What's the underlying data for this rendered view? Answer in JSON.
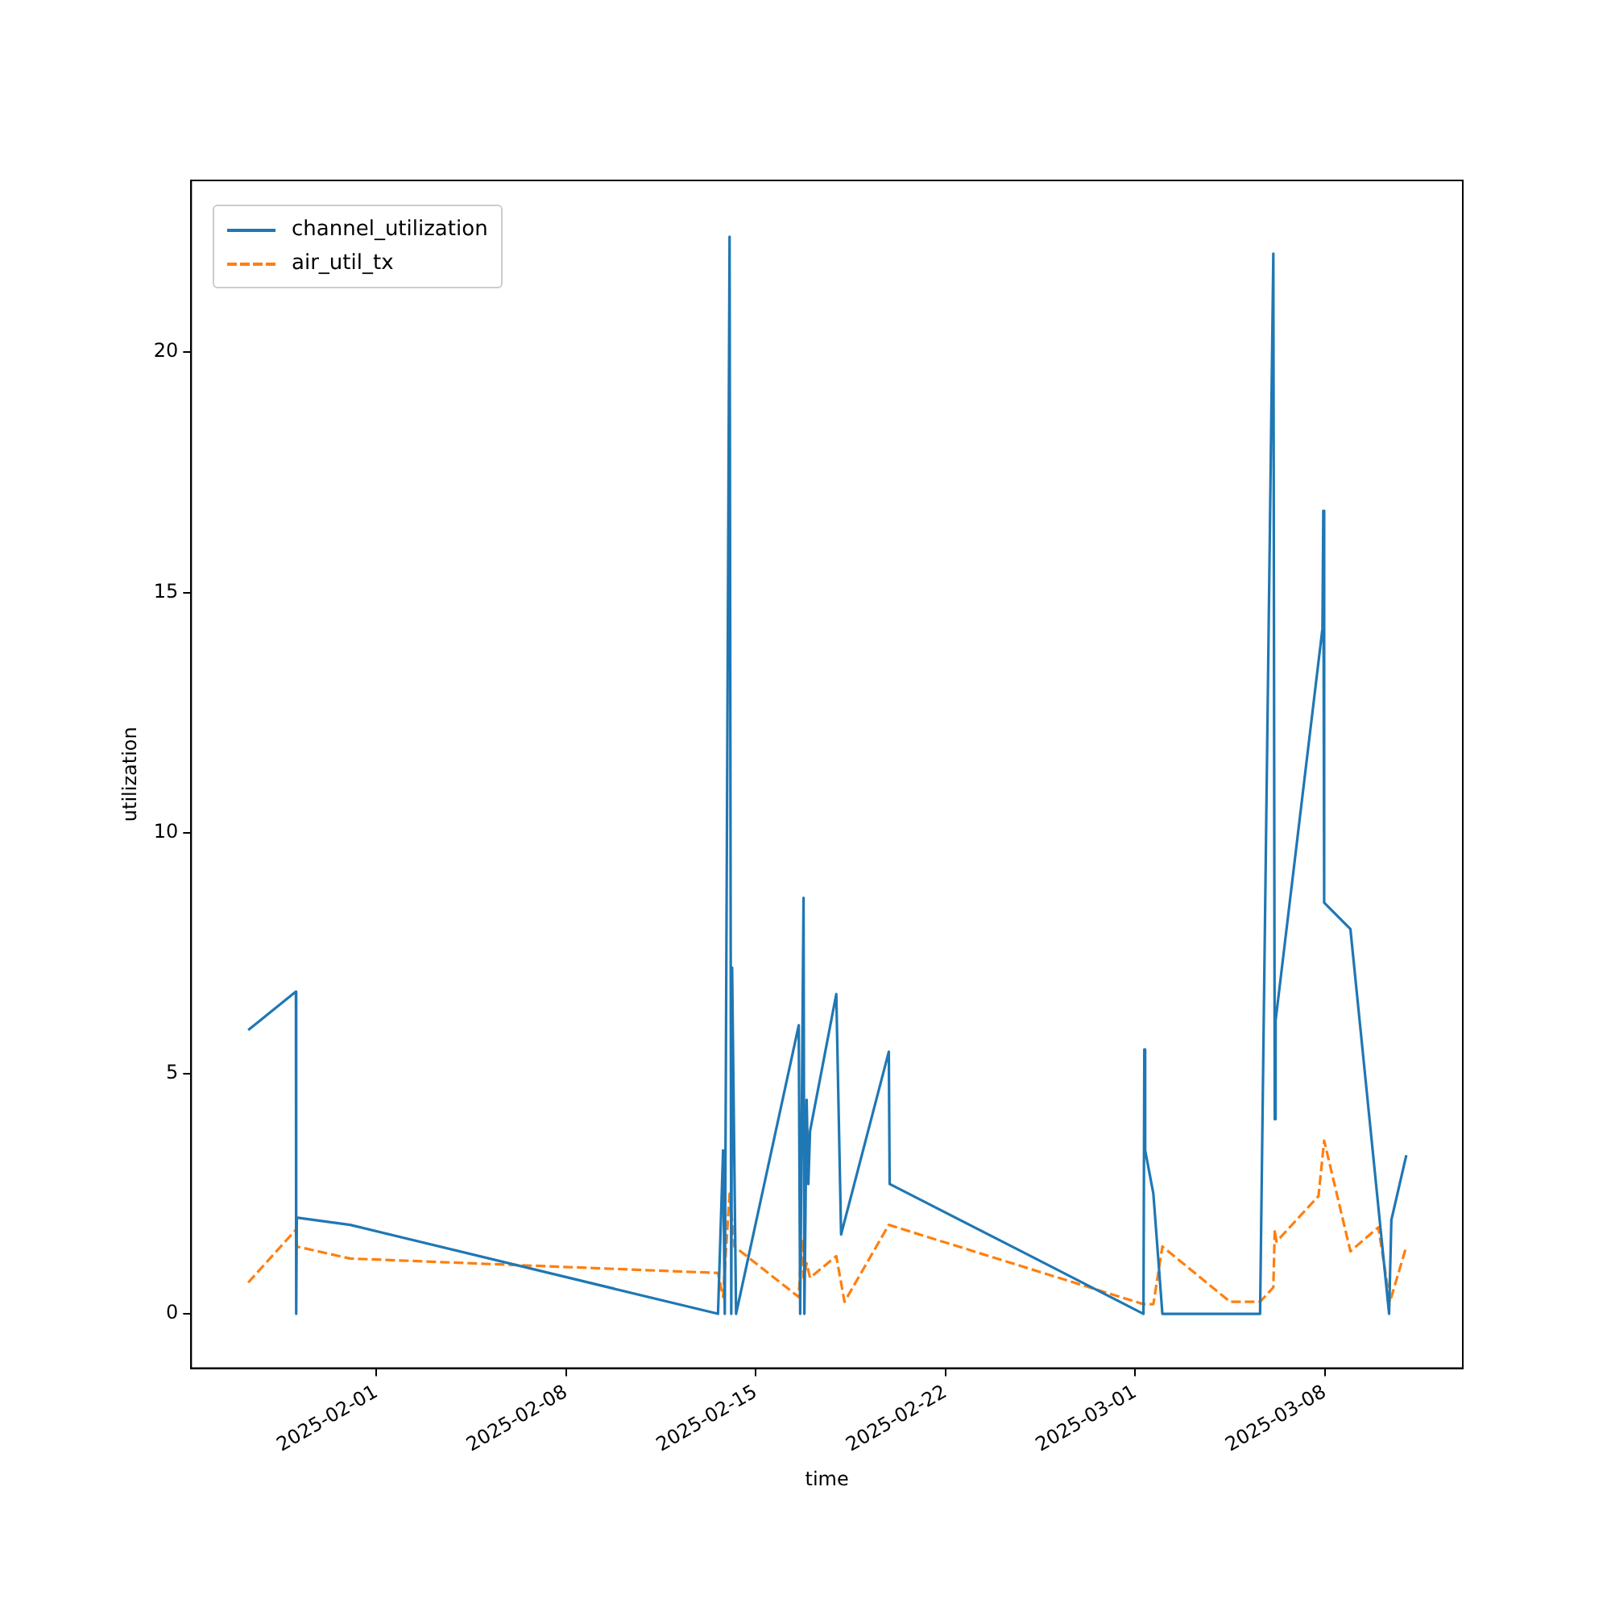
{
  "chart_data": {
    "type": "line",
    "xlabel": "time",
    "ylabel": "utilization",
    "legend": "top left",
    "grid": false,
    "marker": "none",
    "xlim": [
      "2025-01-25T04:00",
      "2025-03-13T02:00"
    ],
    "xticks": [
      "2025-02-01",
      "2025-02-08",
      "2025-02-15",
      "2025-02-22",
      "2025-03-01",
      "2025-03-08"
    ],
    "ylim": [
      -1.13,
      23.57
    ],
    "yticks": [
      0,
      5,
      10,
      15,
      20
    ],
    "series": [
      {
        "name": "channel_utilization",
        "color": "#1f77b4",
        "line_style": "solid",
        "x": [
          "2025-01-27T06:30",
          "2025-01-29T00:45",
          "2025-01-29T01:00",
          "2025-01-29T01:30",
          "2025-01-31T00:45",
          "2025-02-13T14:30",
          "2025-02-13T19:00",
          "2025-02-13T20:30",
          "2025-02-14T00:45",
          "2025-02-14T02:15",
          "2025-02-14T03:00",
          "2025-02-14T06:30",
          "2025-02-16T14:00",
          "2025-02-16T15:15",
          "2025-02-16T18:15",
          "2025-02-16T19:00",
          "2025-02-16T21:00",
          "2025-02-16T22:30",
          "2025-02-17T00:00",
          "2025-02-17T23:15",
          "2025-02-18T03:30",
          "2025-02-19T21:45",
          "2025-02-19T22:30",
          "2025-03-01T07:15",
          "2025-03-01T08:00",
          "2025-03-01T08:45",
          "2025-03-01T16:00",
          "2025-03-02T00:00",
          "2025-03-05T14:30",
          "2025-03-06T02:15",
          "2025-03-06T03:30",
          "2025-03-06T04:15",
          "2025-03-07T21:45",
          "2025-03-07T22:30",
          "2025-03-07T23:15",
          "2025-03-08T22:30",
          "2025-03-10T08:45",
          "2025-03-10T10:45",
          "2025-03-11T00:00"
        ],
        "values": [
          5.9,
          6.7,
          0,
          2.0,
          1.85,
          0,
          3.4,
          0,
          22.4,
          0,
          7.2,
          0,
          6.0,
          0,
          8.65,
          0,
          4.45,
          2.7,
          3.8,
          6.65,
          1.65,
          5.45,
          2.7,
          0,
          5.5,
          3.4,
          2.5,
          0,
          0,
          22.05,
          4.05,
          6.1,
          14.25,
          16.7,
          8.55,
          8.0,
          0,
          1.95,
          3.3
        ]
      },
      {
        "name": "air_util_tx",
        "color": "#ff7f0e",
        "line_style": "dashed",
        "x": [
          "2025-01-27T06:30",
          "2025-01-29T00:45",
          "2025-01-29T01:30",
          "2025-01-31T00:45",
          "2025-02-13T14:30",
          "2025-02-13T19:00",
          "2025-02-14T00:45",
          "2025-02-14T05:00",
          "2025-02-16T14:00",
          "2025-02-16T16:45",
          "2025-02-16T18:15",
          "2025-02-16T21:00",
          "2025-02-17T00:00",
          "2025-02-17T23:15",
          "2025-02-18T06:30",
          "2025-02-19T21:45",
          "2025-03-01T07:15",
          "2025-03-01T16:00",
          "2025-03-02T00:00",
          "2025-03-04T12:00",
          "2025-03-05T14:30",
          "2025-03-06T02:15",
          "2025-03-06T03:30",
          "2025-03-06T05:00",
          "2025-03-07T18:15",
          "2025-03-07T23:15",
          "2025-03-08T22:30",
          "2025-03-09T23:15",
          "2025-03-10T09:30",
          "2025-03-11T00:00"
        ],
        "values": [
          0.65,
          1.75,
          1.4,
          1.15,
          0.85,
          0.35,
          2.5,
          1.4,
          0.35,
          1.55,
          0.75,
          1.05,
          0.75,
          1.2,
          0.25,
          1.85,
          0.2,
          0.2,
          1.4,
          0.25,
          0.25,
          0.55,
          1.75,
          1.5,
          2.45,
          3.6,
          1.3,
          1.8,
          0.25,
          1.4
        ]
      }
    ]
  }
}
